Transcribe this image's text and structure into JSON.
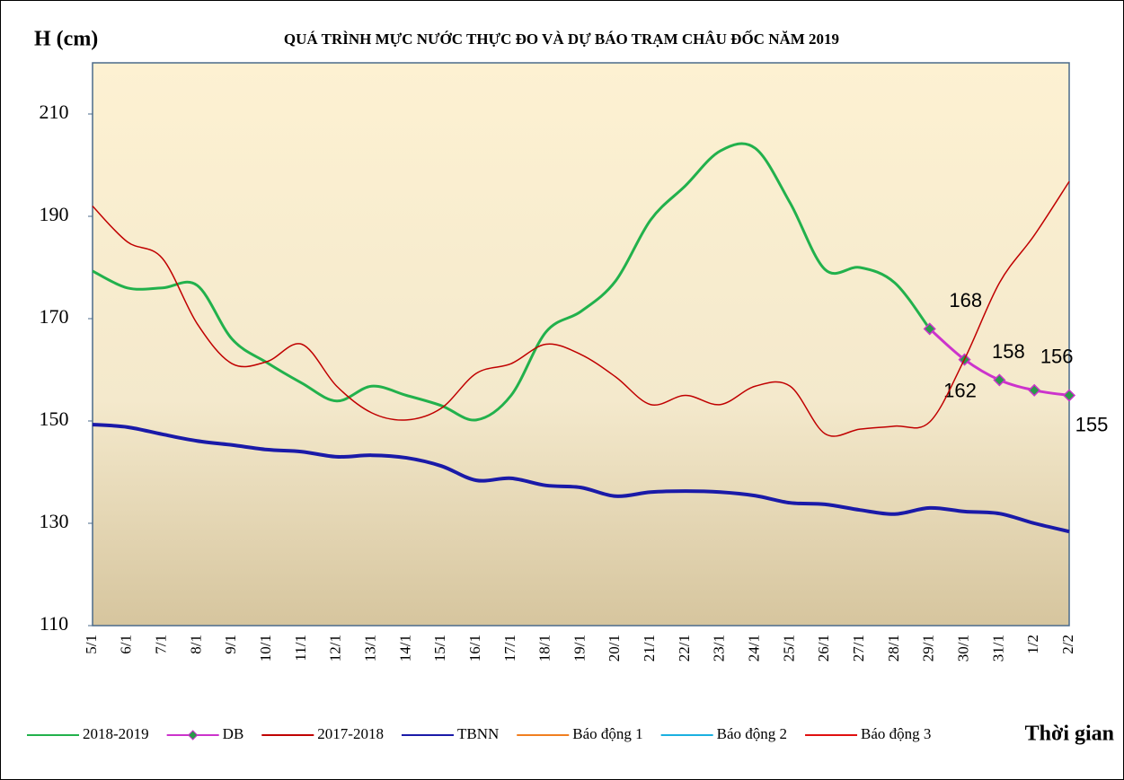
{
  "chart_data": {
    "type": "line",
    "title": "QUÁ TRÌNH MỰC NƯỚC THỰC ĐO VÀ DỰ BÁO TRẠM CHÂU ĐỐC NĂM 2019",
    "y_label": "H (cm)",
    "x_label": "Thời gian",
    "categories": [
      "5/1",
      "6/1",
      "7/1",
      "8/1",
      "9/1",
      "10/1",
      "11/1",
      "12/1",
      "13/1",
      "14/1",
      "15/1",
      "16/1",
      "17/1",
      "18/1",
      "19/1",
      "20/1",
      "21/1",
      "22/1",
      "23/1",
      "24/1",
      "25/1",
      "26/1",
      "27/1",
      "28/1",
      "29/1",
      "30/1",
      "31/1",
      "1/2",
      "2/2"
    ],
    "ylim": [
      110,
      220
    ],
    "yticks": [
      110,
      130,
      150,
      170,
      190,
      210
    ],
    "series": [
      {
        "name": "2018-2019",
        "color": "#22b14c",
        "width": 3,
        "values": [
          179.3,
          176,
          176,
          176.5,
          166,
          161.4,
          157.4,
          153.9,
          156.8,
          155,
          153,
          150.2,
          155,
          167.4,
          171.4,
          177.4,
          189.3,
          196,
          202.8,
          203.3,
          192.6,
          179.6,
          180,
          177,
          168,
          null,
          null,
          null,
          null
        ]
      },
      {
        "name": "DB",
        "color": "#cc33cc",
        "width": 3,
        "marker": "diamond",
        "marker_color": "#2a9a4a",
        "values": [
          null,
          null,
          null,
          null,
          null,
          null,
          null,
          null,
          null,
          null,
          null,
          null,
          null,
          null,
          null,
          null,
          null,
          null,
          null,
          null,
          null,
          null,
          null,
          null,
          168,
          162,
          158,
          156,
          155
        ]
      },
      {
        "name": "2017-2018",
        "color": "#c00000",
        "width": 1.5,
        "values": [
          192,
          185,
          181.8,
          169,
          161.2,
          161.6,
          165,
          156.8,
          151.6,
          150.2,
          152.5,
          159.3,
          161.2,
          165,
          163,
          158.6,
          153.2,
          155,
          153.2,
          156.8,
          156.8,
          147.5,
          148.4,
          149,
          149.8,
          162.1,
          177,
          186.3,
          196.8
        ]
      },
      {
        "name": "TBNN",
        "color": "#1a1aa8",
        "width": 4,
        "values": [
          149.3,
          148.8,
          147.4,
          146.1,
          145.3,
          144.4,
          144,
          143,
          143.3,
          142.8,
          141.2,
          138.4,
          138.8,
          137.4,
          137,
          135.3,
          136.1,
          136.3,
          136.1,
          135.4,
          134,
          133.7,
          132.6,
          131.8,
          133,
          132.3,
          131.9,
          130,
          128.4
        ]
      },
      {
        "name": "Báo động 1",
        "color": "#f07f1f",
        "width": 2,
        "values": [
          null,
          null,
          null,
          null,
          null,
          null,
          null,
          null,
          null,
          null,
          null,
          null,
          null,
          null,
          null,
          null,
          null,
          null,
          null,
          null,
          null,
          null,
          null,
          null,
          null,
          null,
          null,
          null,
          null
        ]
      },
      {
        "name": "Báo động 2",
        "color": "#1ab0e0",
        "width": 2,
        "values": [
          null,
          null,
          null,
          null,
          null,
          null,
          null,
          null,
          null,
          null,
          null,
          null,
          null,
          null,
          null,
          null,
          null,
          null,
          null,
          null,
          null,
          null,
          null,
          null,
          null,
          null,
          null,
          null,
          null
        ]
      },
      {
        "name": "Báo động 3",
        "color": "#e01010",
        "width": 2,
        "values": [
          null,
          null,
          null,
          null,
          null,
          null,
          null,
          null,
          null,
          null,
          null,
          null,
          null,
          null,
          null,
          null,
          null,
          null,
          null,
          null,
          null,
          null,
          null,
          null,
          null,
          null,
          null,
          null,
          null
        ]
      }
    ]
  }
}
